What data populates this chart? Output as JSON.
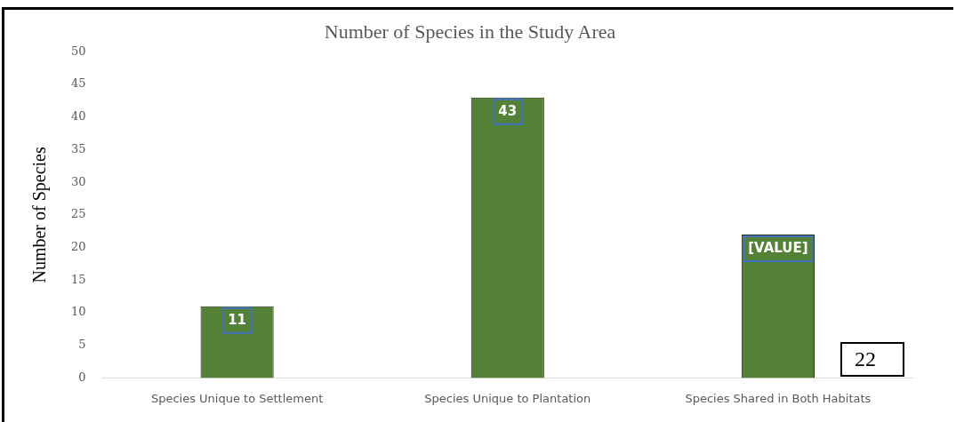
{
  "chart_data": {
    "type": "bar",
    "title": "Number of Species in the Study Area",
    "ylabel": "Number of Species",
    "categories": [
      "Species Unique to Settlement",
      "Species Unique to Plantation",
      "Species Shared in Both Habitats"
    ],
    "values": [
      11,
      43,
      22
    ],
    "color": "#538135",
    "value_labels": [
      "11",
      "43",
      "[VALUE]"
    ],
    "ylim": [
      0,
      50
    ],
    "yticks": [
      0,
      5,
      10,
      15,
      20,
      25,
      30,
      35,
      40,
      45,
      50
    ],
    "grid": false,
    "legend": false,
    "annotations": [
      "22"
    ]
  }
}
